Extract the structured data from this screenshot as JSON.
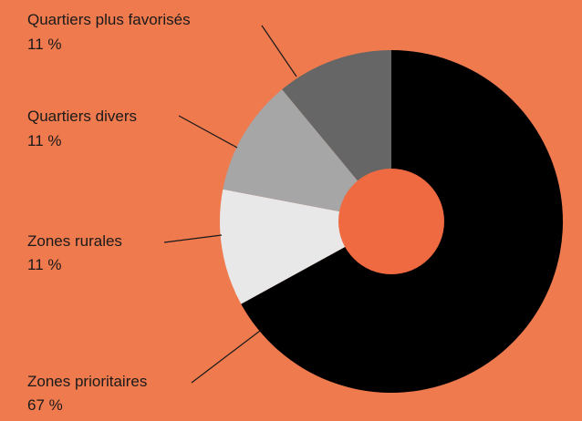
{
  "colors": {
    "background": "#ef7a4e",
    "hole": "#ef6a40",
    "leader": "#1a1a1a"
  },
  "chart_data": {
    "type": "pie",
    "variant": "donut",
    "title": "",
    "slices": [
      {
        "name": "Zones prioritaires",
        "value": 67,
        "label": "67 %",
        "color": "#000000"
      },
      {
        "name": "Zones rurales",
        "value": 11,
        "label": "11 %",
        "color": "#e8e8e8"
      },
      {
        "name": "Quartiers divers",
        "value": 11,
        "label": "11 %",
        "color": "#a6a6a6"
      },
      {
        "name": "Quartiers plus favorisés",
        "value": 11,
        "label": "11 %",
        "color": "#666666"
      }
    ],
    "start": "12 o'clock",
    "direction": "clockwise",
    "legend": "none (labels with leader lines)"
  }
}
